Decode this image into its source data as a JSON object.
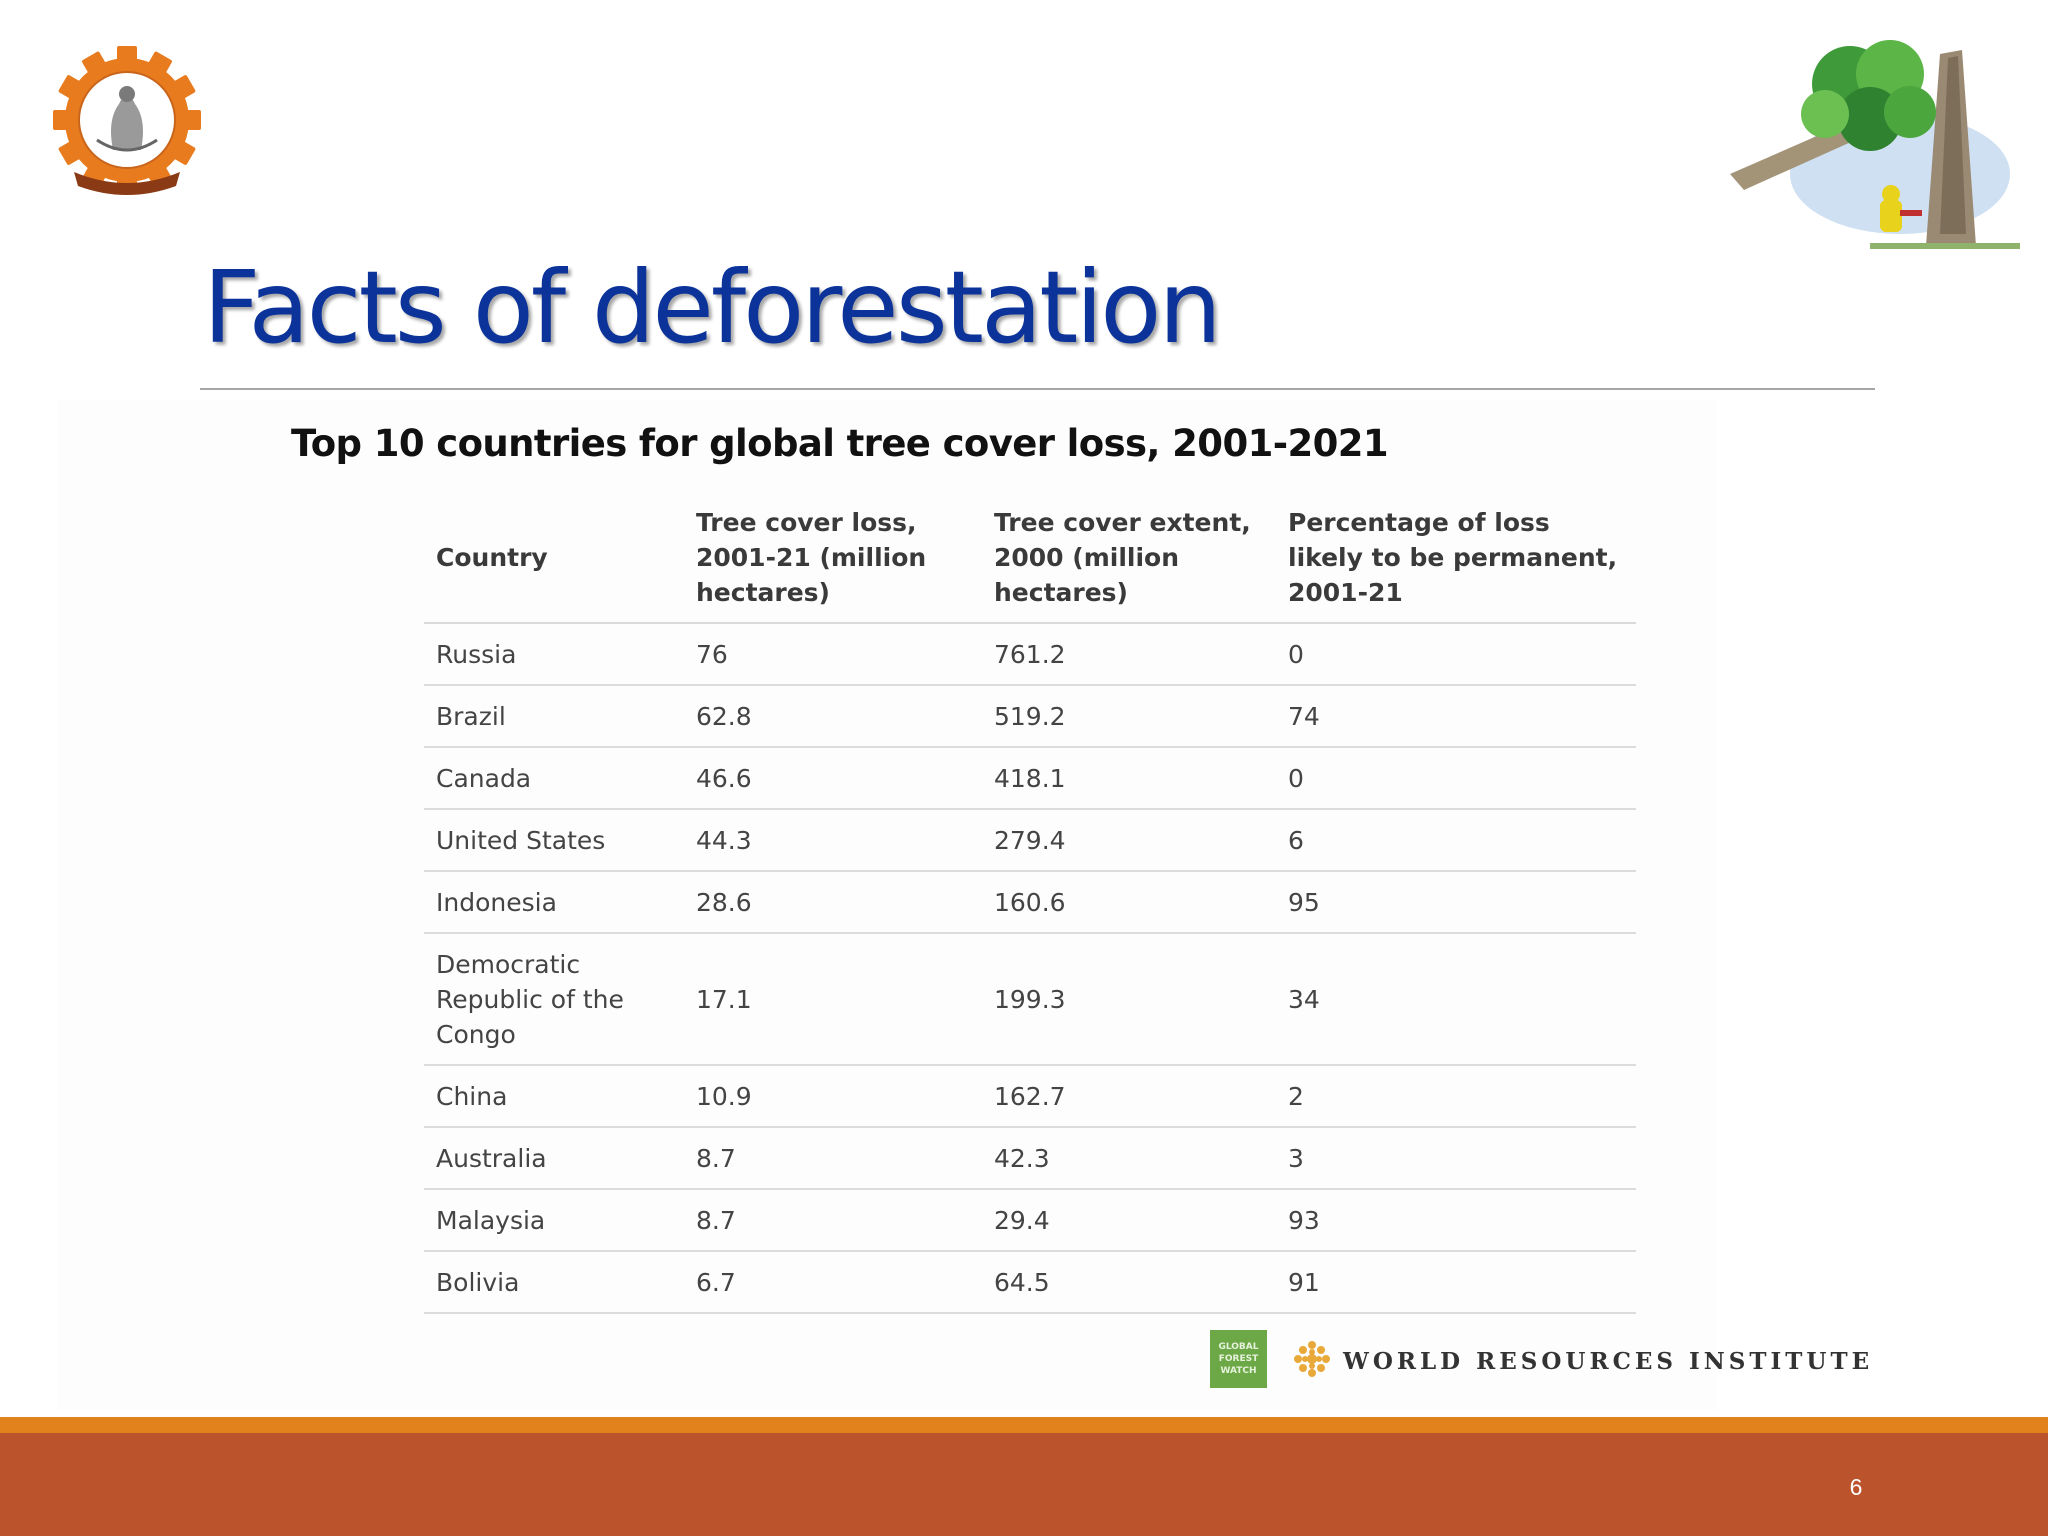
{
  "slide": {
    "title": "Facts of deforestation",
    "number": "6"
  },
  "table_title": "Top 10 countries for global tree cover loss, 2001-2021",
  "table": {
    "headers": [
      "Country",
      "Tree cover loss, 2001-21 (million hectares)",
      "Tree cover extent, 2000 (million hectares)",
      "Percentage of loss likely to be permanent, 2001-21"
    ],
    "rows": [
      [
        "Russia",
        "76",
        "761.2",
        "0"
      ],
      [
        "Brazil",
        "62.8",
        "519.2",
        "74"
      ],
      [
        "Canada",
        "46.6",
        "418.1",
        "0"
      ],
      [
        "United States",
        "44.3",
        "279.4",
        "6"
      ],
      [
        "Indonesia",
        "28.6",
        "160.6",
        "95"
      ],
      [
        "Democratic Republic of the Congo",
        "17.1",
        "199.3",
        "34"
      ],
      [
        "China",
        "10.9",
        "162.7",
        "2"
      ],
      [
        "Australia",
        "8.7",
        "42.3",
        "3"
      ],
      [
        "Malaysia",
        "8.7",
        "29.4",
        "93"
      ],
      [
        "Bolivia",
        "6.7",
        "64.5",
        "91"
      ]
    ]
  },
  "source": {
    "gfw_line1": "GLOBAL",
    "gfw_line2": "FOREST",
    "gfw_line3": "WATCH",
    "wri": "WORLD RESOURCES INSTITUTE"
  },
  "colors": {
    "title": "#0b3399",
    "footer_bar": "#bb542c",
    "footer_stripe": "#e2821c",
    "gfw_green": "#6ca946",
    "wri_gold": "#e8a93a"
  }
}
